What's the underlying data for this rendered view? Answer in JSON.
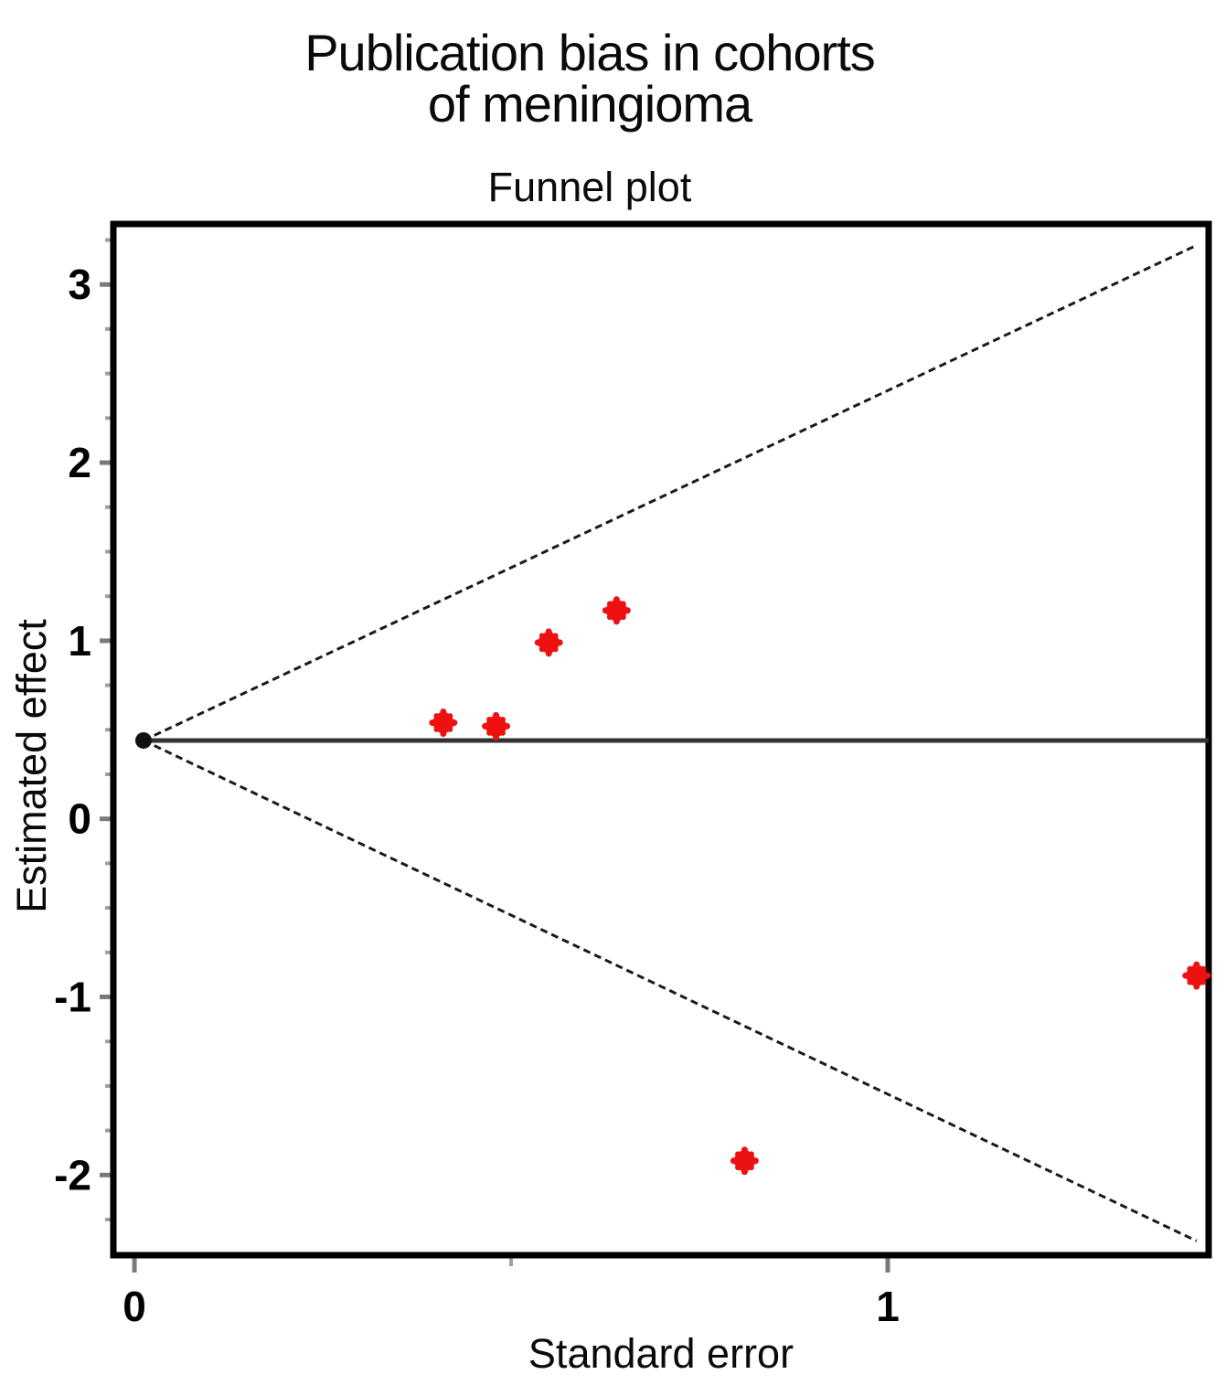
{
  "figure": {
    "suptitle_line1": "Publication bias in cohorts",
    "suptitle_line2": "of meningioma"
  },
  "chart_data": {
    "type": "scatter",
    "title": "Funnel plot",
    "suptitle": "Publication bias in cohorts of meningioma",
    "xlabel": "Standard error",
    "ylabel": "Estimated effect",
    "xlim": [
      -0.028,
      1.426
    ],
    "ylim": [
      -2.45,
      3.34
    ],
    "grid": false,
    "legend": false,
    "x_major_ticks": [
      {
        "value": 0,
        "label": "0"
      },
      {
        "value": 1,
        "label": "1"
      }
    ],
    "x_minor_ticks": [
      0.5
    ],
    "y_major_ticks": [
      {
        "value": 3,
        "label": "3"
      },
      {
        "value": 2,
        "label": "2"
      },
      {
        "value": 1,
        "label": "1"
      },
      {
        "value": 0,
        "label": "0"
      },
      {
        "value": -1,
        "label": "-1"
      },
      {
        "value": -2,
        "label": "-2"
      }
    ],
    "y_minor_step": 0.25,
    "series": [
      {
        "name": "study-estimates",
        "marker": "filled-circle",
        "color": "#ee1111",
        "points": [
          [
            0.41,
            0.54
          ],
          [
            0.48,
            0.52
          ],
          [
            0.55,
            0.99
          ],
          [
            0.64,
            1.17
          ],
          [
            0.81,
            -1.92
          ],
          [
            1.41,
            -0.88
          ]
        ]
      }
    ],
    "funnel": {
      "pooled_effect": 0.44,
      "apex": [
        0.012,
        0.44
      ],
      "upper_ci_end": [
        1.41,
        3.22
      ],
      "lower_ci_end": [
        1.41,
        -2.37
      ],
      "center_line_end_x": 1.426,
      "ci_slope_per_se": 1.96
    },
    "colors": {
      "point": "#ee1111",
      "apex_point": "#111111",
      "ci_line": "#1a1a1a",
      "pooled_line": "#333333",
      "border": "#000000",
      "major_tick": "#7a7a7a",
      "minor_tick": "#9e9e9e"
    }
  }
}
